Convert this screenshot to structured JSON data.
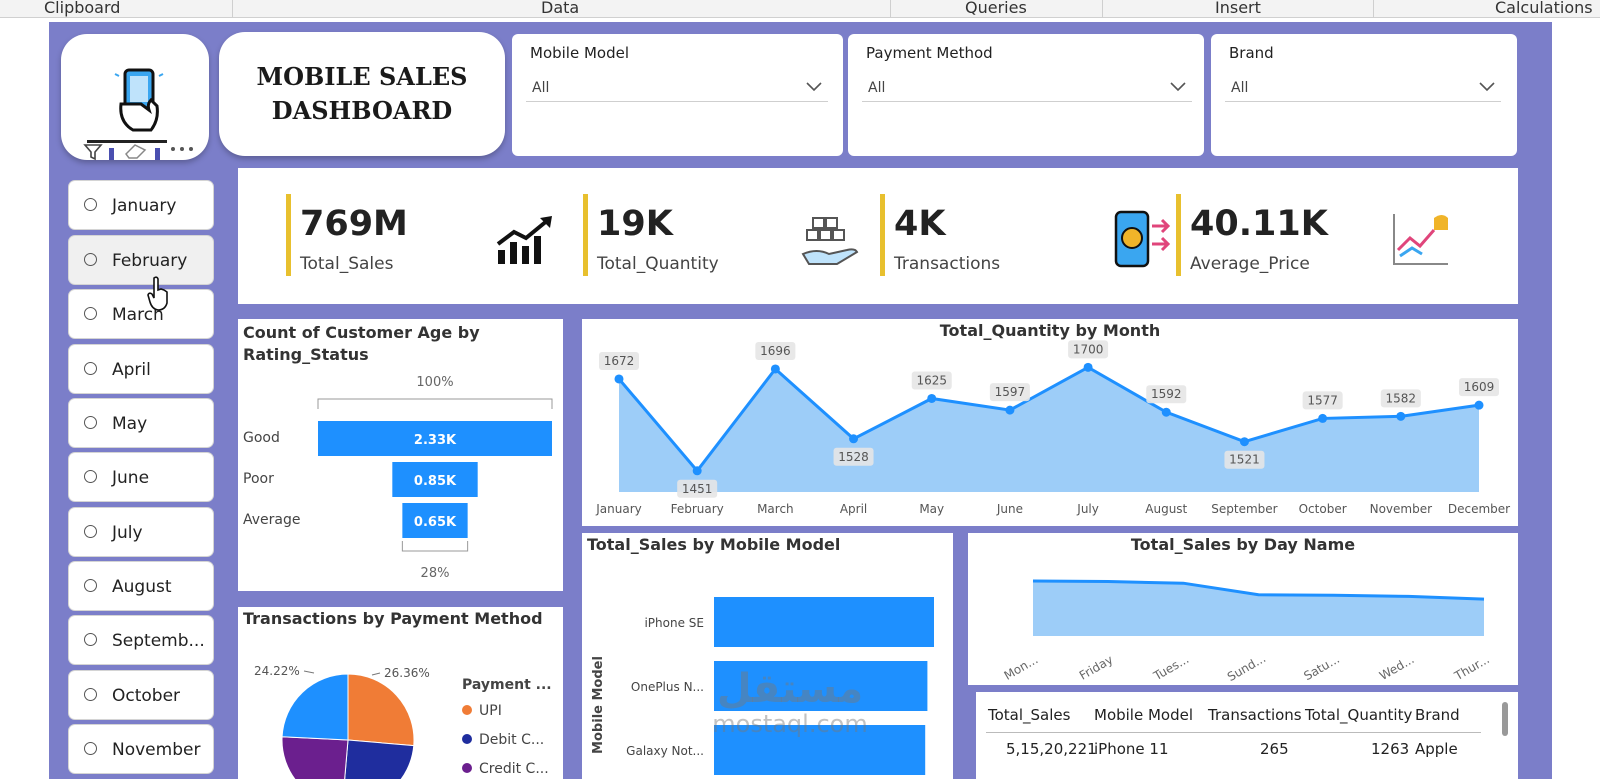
{
  "ribbon": {
    "groups": [
      "Clipboard",
      "Data",
      "Queries",
      "Insert",
      "Calculations"
    ]
  },
  "dashboard": {
    "title_line1": "MOBILE SALES",
    "title_line2": "DASHBOARD"
  },
  "slicers": [
    {
      "label": "Mobile Model",
      "value": "All"
    },
    {
      "label": "Payment Method",
      "value": "All"
    },
    {
      "label": "Brand",
      "value": "All"
    }
  ],
  "months": [
    "January",
    "February",
    "March",
    "April",
    "May",
    "June",
    "July",
    "August",
    "Septemb...",
    "October",
    "November"
  ],
  "kpis": [
    {
      "value": "769M",
      "name": "Total_Sales"
    },
    {
      "value": "19K",
      "name": "Total_Quantity"
    },
    {
      "value": "4K",
      "name": "Transactions"
    },
    {
      "value": "40.11K",
      "name": "Average_Price"
    }
  ],
  "colors": {
    "canvas": "#7b7ec9",
    "accent_blue": "#1e90ff",
    "area_fill": "#8cc4f7",
    "kpi_bar": "#e8c02e",
    "pie_orange": "#f07c36",
    "pie_navy": "#1f2d9e",
    "pie_purple": "#6b1f8e"
  },
  "chart_data": [
    {
      "type": "bar",
      "title": "Count of Customer Age by Rating_Status",
      "subtype": "funnel",
      "categories": [
        "Good",
        "Poor",
        "Average"
      ],
      "values": [
        2.33,
        0.85,
        0.65
      ],
      "labels": [
        "2.33K",
        "0.85K",
        "0.65K"
      ],
      "top_label": "100%",
      "bottom_label": "28%"
    },
    {
      "type": "area",
      "title": "Total_Quantity by Month",
      "categories": [
        "January",
        "February",
        "March",
        "April",
        "May",
        "June",
        "July",
        "August",
        "September",
        "October",
        "November",
        "December"
      ],
      "values": [
        1672,
        1451,
        1696,
        1528,
        1625,
        1597,
        1700,
        1592,
        1521,
        1577,
        1582,
        1609
      ],
      "ylim": [
        1400,
        1720
      ]
    },
    {
      "type": "bar",
      "title": "Total_Sales by Mobile Model",
      "orientation": "horizontal",
      "ylabel": "Mobile Model",
      "categories": [
        "iPhone SE",
        "OnePlus N...",
        "Galaxy Not..."
      ],
      "values": [
        100,
        97,
        96
      ]
    },
    {
      "type": "area",
      "title": "Total_Sales by Day Name",
      "categories": [
        "Mon...",
        "Friday",
        "Tues...",
        "Sund...",
        "Satu...",
        "Wed...",
        "Thur..."
      ],
      "values": [
        100,
        99,
        96,
        75,
        74,
        72,
        67
      ],
      "ylim": [
        0,
        100
      ]
    },
    {
      "type": "pie",
      "title": "Transactions by Payment Method",
      "legend_title": "Payment ...",
      "legend_placement": "right",
      "slices": [
        {
          "name": "UPI",
          "value": 26.36,
          "label": "26.36%"
        },
        {
          "name": "Debit C...",
          "value": 25.0
        },
        {
          "name": "Credit C...",
          "value": 24.42
        },
        {
          "name": "",
          "value": 24.22,
          "label": "24.22%"
        }
      ]
    },
    {
      "type": "table",
      "columns": [
        "Total_Sales",
        "Mobile Model",
        "Transactions",
        "Total_Quantity",
        "Brand"
      ],
      "rows": [
        [
          "5,15,20,221",
          "iPhone 11",
          "265",
          "1263",
          "Apple"
        ]
      ]
    }
  ],
  "watermark": {
    "arabic": "مستقل",
    "latin": "mostaql.com"
  }
}
